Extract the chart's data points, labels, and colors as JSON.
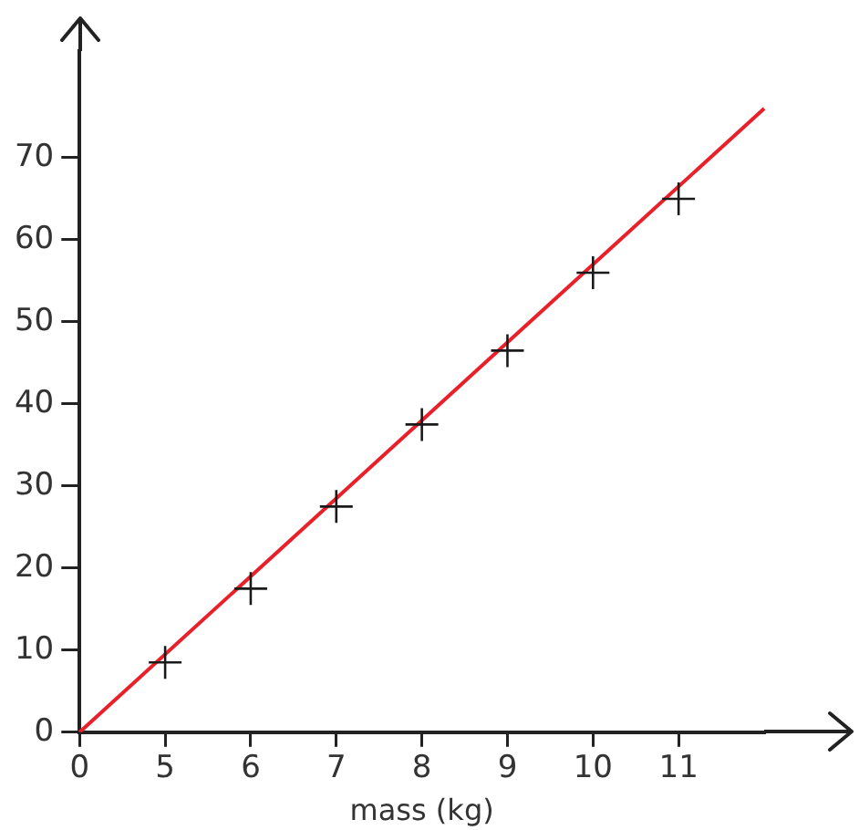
{
  "chart_data": {
    "type": "scatter",
    "xlabel": "mass (kg)",
    "categories": [
      "0",
      "5",
      "6",
      "7",
      "8",
      "9",
      "10",
      "11",
      null
    ],
    "series": [
      {
        "type": "line",
        "marker": "none",
        "color": "#e8202a",
        "values": [
          0,
          null,
          null,
          null,
          null,
          null,
          null,
          null,
          76
        ]
      },
      {
        "color": "#1a1a1a",
        "values": [
          null,
          8.5,
          17.5,
          27.5,
          37.5,
          46.5,
          56,
          65,
          null
        ]
      }
    ],
    "ylim": [
      0,
      83
    ],
    "yticks": [
      0,
      10,
      20,
      30,
      40,
      50,
      60,
      70
    ],
    "marker": "cross",
    "grid": false,
    "legend": false
  }
}
